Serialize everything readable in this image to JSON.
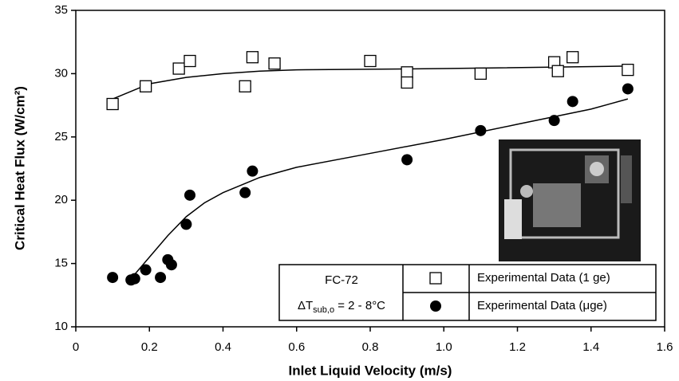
{
  "chart_data": {
    "type": "scatter",
    "x_label": "Inlet Liquid Velocity (m/s)",
    "y_label": "Critical Heat Flux (W/cm²)",
    "xlim": [
      0,
      1.6
    ],
    "ylim": [
      10,
      35
    ],
    "xticks": [
      0,
      0.2,
      0.4,
      0.6,
      0.8,
      {
        "value": 1,
        "label": "1.0"
      },
      1.2,
      1.4,
      1.6
    ],
    "yticks": [
      10,
      15,
      20,
      25,
      30,
      35
    ],
    "annotation": {
      "fluid": "FC-72",
      "condition": [
        "ΔT",
        "sub,o",
        " = 2 - 8°C"
      ]
    },
    "series": [
      {
        "name": "Experimental Data (1 ge)",
        "marker": "square",
        "color": "#000000",
        "x": [
          0.1,
          0.19,
          0.28,
          0.31,
          0.46,
          0.48,
          0.54,
          0.8,
          0.9,
          0.9,
          1.1,
          1.3,
          1.31,
          1.35,
          1.5
        ],
        "values": [
          27.6,
          29,
          30.4,
          31,
          29,
          31.3,
          30.8,
          31,
          30.1,
          29.3,
          30,
          30.9,
          30.2,
          31.3,
          30.3
        ],
        "fit_x": [
          0.1,
          0.2,
          0.3,
          0.4,
          0.5,
          0.6,
          1.0,
          1.5
        ],
        "fit_values": [
          28,
          29.2,
          29.7,
          30,
          30.2,
          30.3,
          30.4,
          30.6
        ]
      },
      {
        "name": "Experimental Data (μge)",
        "marker": "circle",
        "color": "#000000",
        "x": [
          0.1,
          0.15,
          0.16,
          0.19,
          0.23,
          0.25,
          0.26,
          0.3,
          0.31,
          0.46,
          0.48,
          0.9,
          1.1,
          1.3,
          1.35,
          1.5
        ],
        "values": [
          13.9,
          13.7,
          13.8,
          14.5,
          13.9,
          15.3,
          14.9,
          18.1,
          20.4,
          20.6,
          22.3,
          23.2,
          25.5,
          26.3,
          27.8,
          28.8
        ],
        "fit_x": [
          0.15,
          0.2,
          0.25,
          0.3,
          0.35,
          0.4,
          0.5,
          0.6,
          0.8,
          1.0,
          1.2,
          1.4,
          1.5
        ],
        "fit_values": [
          13.8,
          15.5,
          17.2,
          18.7,
          19.8,
          20.6,
          21.8,
          22.6,
          23.7,
          24.8,
          26,
          27.2,
          28
        ]
      }
    ]
  }
}
